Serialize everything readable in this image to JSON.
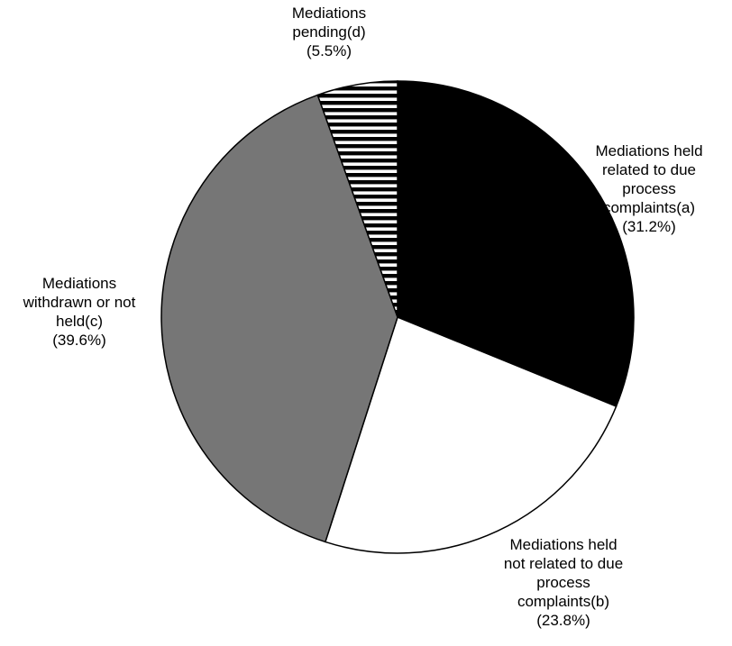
{
  "chart_data": {
    "type": "pie",
    "title": "",
    "start_angle_deg": 0,
    "direction": "clockwise",
    "slices": [
      {
        "label_lines": [
          "Mediations held",
          "related to due",
          "process",
          "complaints(a)",
          "(31.2%)"
        ],
        "value": 31.2,
        "fill": "solid-black",
        "color": "#000000"
      },
      {
        "label_lines": [
          "Mediations held",
          "not related to due",
          "process",
          "complaints(b)",
          "(23.8%)"
        ],
        "value": 23.8,
        "fill": "solid-white",
        "color": "#ffffff"
      },
      {
        "label_lines": [
          "Mediations",
          "withdrawn or not",
          "held(c)",
          "(39.6%)"
        ],
        "value": 39.6,
        "fill": "solid-gray",
        "color": "#767676"
      },
      {
        "label_lines": [
          "Mediations",
          "pending(d)",
          "(5.5%)"
        ],
        "value": 5.5,
        "fill": "horizontal-stripes",
        "color": "#000000"
      }
    ],
    "legend": "none"
  }
}
